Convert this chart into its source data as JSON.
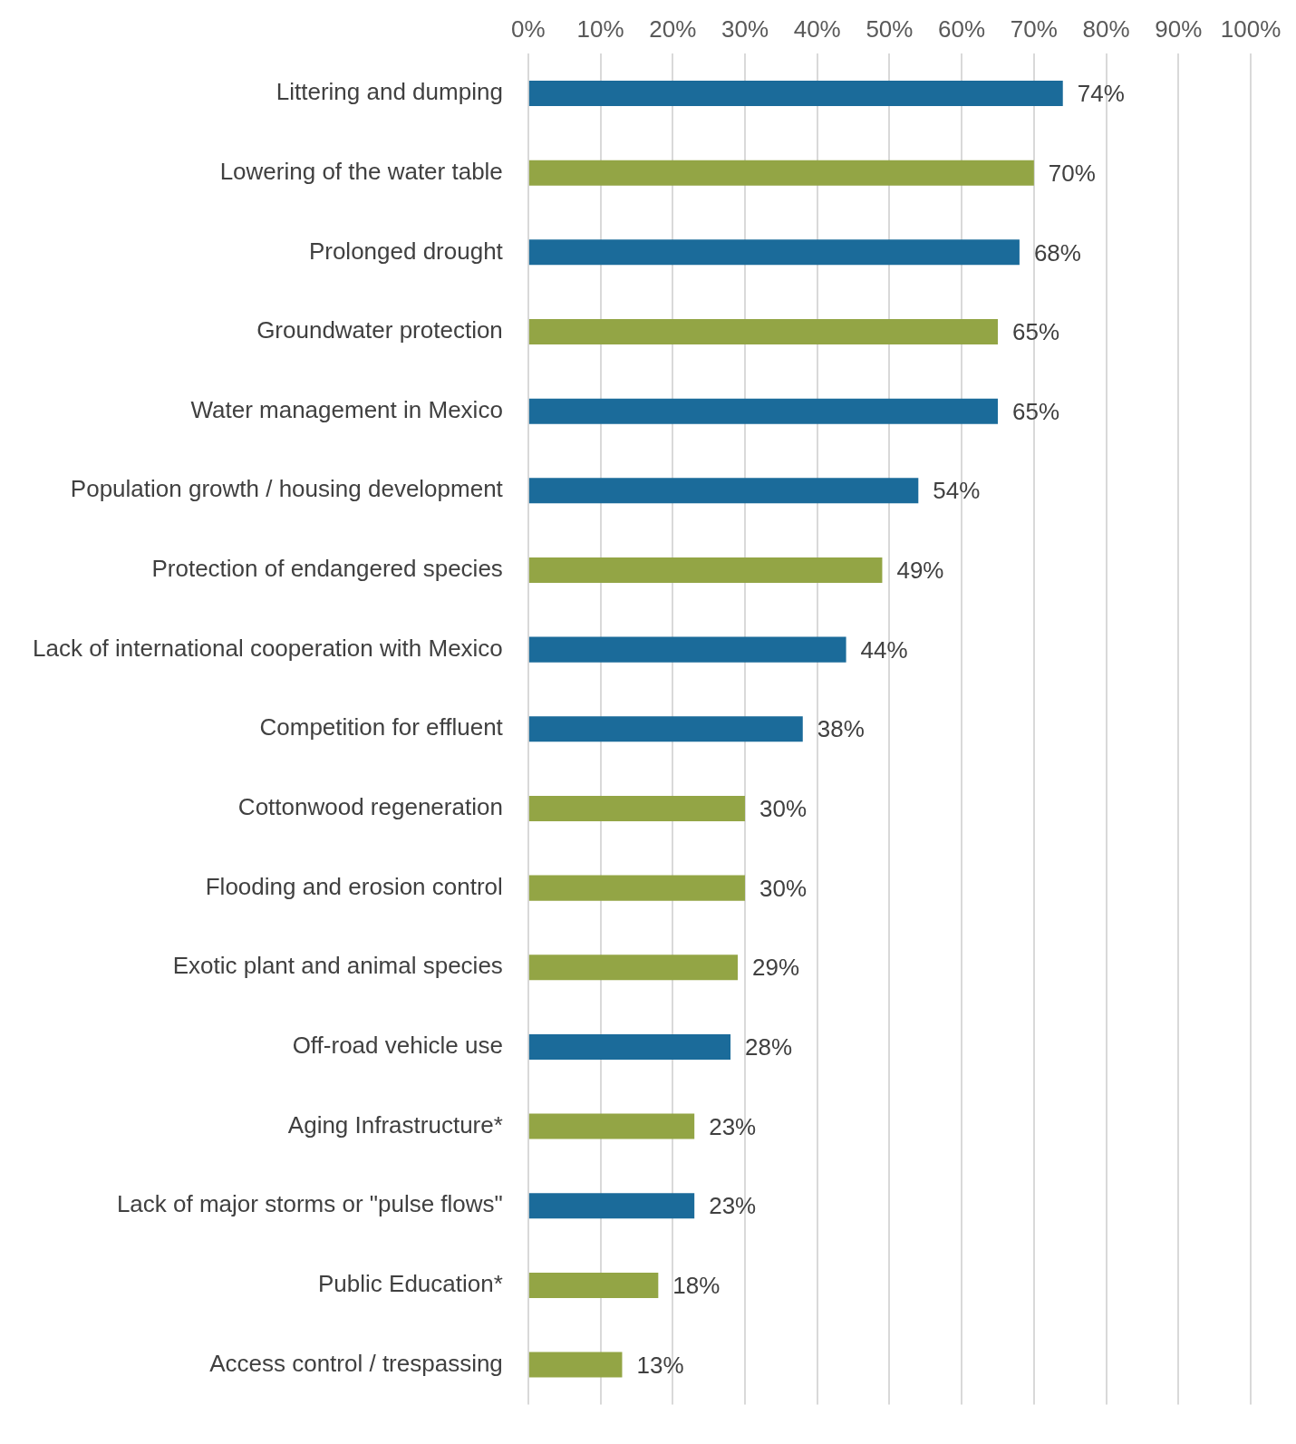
{
  "chart_data": {
    "type": "bar",
    "orientation": "horizontal",
    "categories": [
      "Littering and dumping",
      "Lowering of the water table",
      "Prolonged drought",
      "Groundwater protection",
      "Water management in Mexico",
      "Population growth / housing development",
      "Protection of endangered species",
      "Lack of international cooperation with Mexico",
      "Competition for effluent",
      "Cottonwood regeneration",
      "Flooding and erosion control",
      "Exotic plant and animal species",
      "Off-road vehicle use",
      "Aging Infrastructure*",
      "Lack of major storms or \"pulse flows\"",
      "Public Education*",
      "Access control / trespassing"
    ],
    "values": [
      74,
      70,
      68,
      65,
      65,
      54,
      49,
      44,
      38,
      30,
      30,
      29,
      28,
      23,
      23,
      18,
      13
    ],
    "value_labels": [
      "74%",
      "70%",
      "68%",
      "65%",
      "65%",
      "54%",
      "49%",
      "44%",
      "38%",
      "30%",
      "30%",
      "29%",
      "28%",
      "23%",
      "23%",
      "18%",
      "13%"
    ],
    "colors": [
      "#1b6b9a",
      "#93a545",
      "#1b6b9a",
      "#93a545",
      "#1b6b9a",
      "#1b6b9a",
      "#93a545",
      "#1b6b9a",
      "#1b6b9a",
      "#93a545",
      "#93a545",
      "#93a545",
      "#1b6b9a",
      "#93a545",
      "#1b6b9a",
      "#93a545",
      "#93a545"
    ],
    "xlim": [
      0,
      100
    ],
    "xticks": [
      {
        "value": 0,
        "label": "0%"
      },
      {
        "value": 10,
        "label": "10%"
      },
      {
        "value": 20,
        "label": "20%"
      },
      {
        "value": 30,
        "label": "30%"
      },
      {
        "value": 40,
        "label": "40%"
      },
      {
        "value": 50,
        "label": "50%"
      },
      {
        "value": 60,
        "label": "60%"
      },
      {
        "value": 70,
        "label": "70%"
      },
      {
        "value": 80,
        "label": "80%"
      },
      {
        "value": 90,
        "label": "90%"
      },
      {
        "value": 100,
        "label": "100%"
      }
    ],
    "grid": "x",
    "legend": false
  }
}
